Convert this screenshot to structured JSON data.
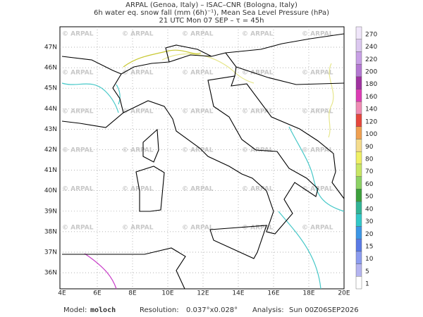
{
  "header": {
    "line1": "ARPAL (Genoa, Italy)  –  ISAC–CNR (Bologna, Italy)",
    "line2": "6h water eq. snow fall (mm (6h)⁻¹), Mean Sea Level Pressure (hPa)",
    "line3": "21 UTC Mon 07 SEP  –  τ = 45h"
  },
  "watermark": "© ARPAL",
  "lat_labels": [
    "47N",
    "46N",
    "45N",
    "44N",
    "43N",
    "42N",
    "41N",
    "40N",
    "39N",
    "38N",
    "37N",
    "36N"
  ],
  "lon_labels": [
    "4E",
    "6E",
    "8E",
    "10E",
    "12E",
    "14E",
    "16E",
    "18E",
    "20E"
  ],
  "colorbar": {
    "values": [
      1,
      5,
      10,
      15,
      20,
      30,
      40,
      50,
      60,
      70,
      80,
      90,
      100,
      120,
      140,
      160,
      180,
      200,
      220,
      240,
      270
    ],
    "colors": [
      "#ffffff",
      "#b4b4f0",
      "#8c9cf0",
      "#5a7ae6",
      "#3c96e6",
      "#32c8c8",
      "#32b496",
      "#3ca03c",
      "#8cd264",
      "#c8e664",
      "#f0f064",
      "#f5dc8c",
      "#f0a050",
      "#e6463c",
      "#f08cb4",
      "#dc3cb4",
      "#a032a0",
      "#b478d2",
      "#c8a0e6",
      "#dcc8f0",
      "#f0e6fa"
    ]
  },
  "footer": {
    "model_label": "Model:",
    "model": "moloch",
    "resolution_label": "Resolution:",
    "resolution": "0.037°x0.028°",
    "analysis_label": "Analysis:",
    "analysis": "Sun 00Z06SEP2026"
  }
}
